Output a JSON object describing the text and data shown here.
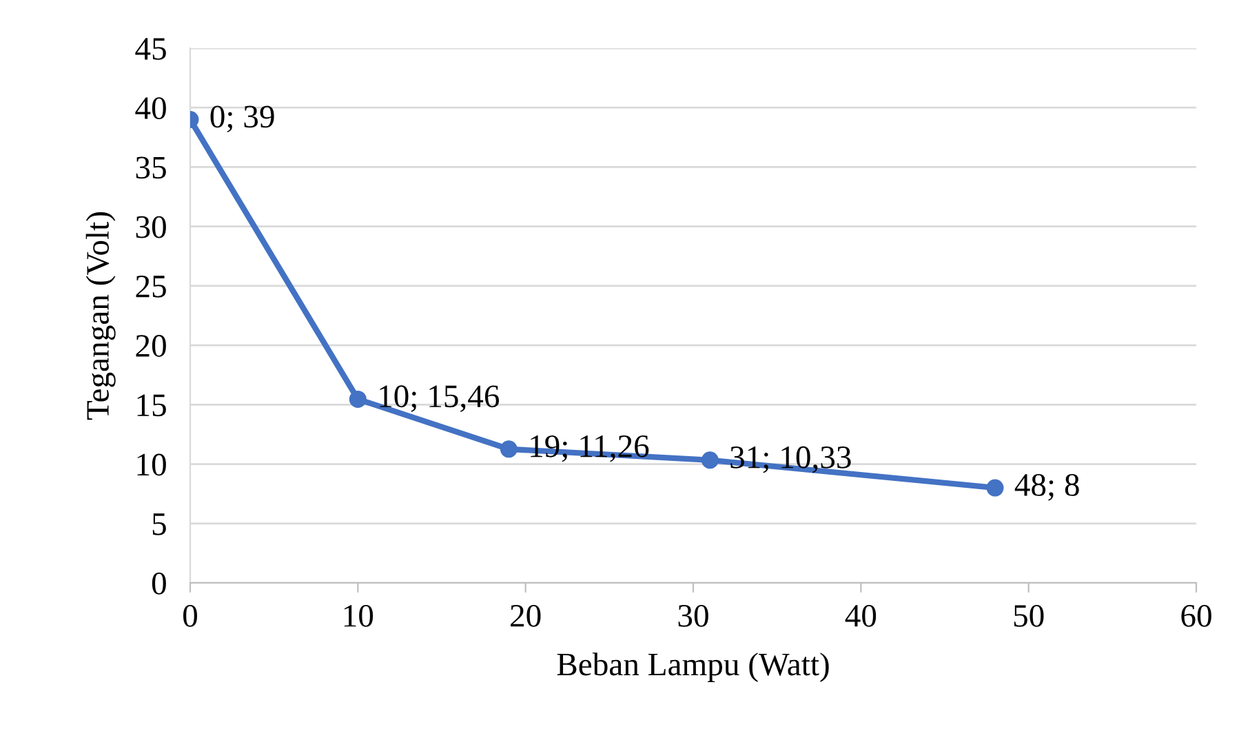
{
  "chart_data": {
    "type": "line",
    "xlabel": "Beban Lampu (Watt)",
    "ylabel": "Tegangan (Volt)",
    "series": [
      {
        "color": "#4472c4",
        "x": [
          0,
          10,
          19,
          31,
          48
        ],
        "values": [
          39,
          15.46,
          11.26,
          10.33,
          8
        ],
        "value_labels": [
          "0; 39",
          "10; 15,46",
          "19; 11,26",
          "31; 10,33",
          "48; 8"
        ]
      }
    ],
    "xlim": [
      0,
      60
    ],
    "xticks": [
      0,
      10,
      20,
      30,
      40,
      50,
      60
    ],
    "ylim": [
      0,
      45
    ],
    "yticks": [
      0,
      5,
      10,
      15,
      20,
      25,
      30,
      35,
      40,
      45
    ],
    "grid": "y",
    "marker": "circle",
    "line_style": "solid",
    "legend": false
  }
}
